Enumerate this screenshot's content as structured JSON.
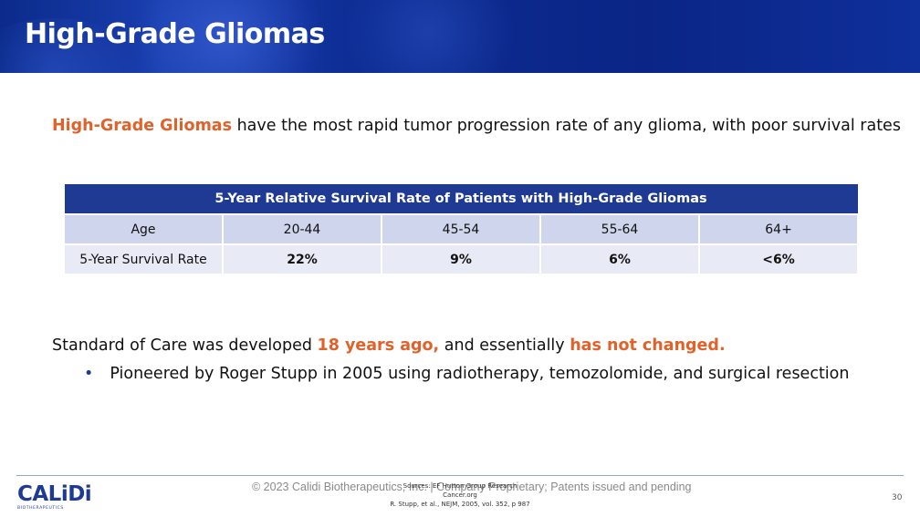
{
  "header": {
    "title": "High-Grade Gliomas"
  },
  "intro": {
    "highlight": "High-Grade Gliomas",
    "text": " have the most rapid tumor progression rate of any glioma, with poor survival rates"
  },
  "table": {
    "caption": "5-Year Relative Survival Rate of Patients with High-Grade Gliomas",
    "age_row": [
      "Age",
      "20-44",
      "45-54",
      "55-64",
      "64+"
    ],
    "rate_row": [
      "5-Year Survival Rate",
      "22%",
      "9%",
      "6%",
      "<6%"
    ]
  },
  "soc": {
    "prefix": "Standard of Care was developed ",
    "highlight1": "18 years ago,",
    "middle": " and essentially ",
    "highlight2": "has not changed."
  },
  "bullet": {
    "symbol": "•",
    "text": "Pioneered by Roger Stupp in 2005 using radiotherapy, temozolomide, and surgical resection"
  },
  "footer": {
    "logo_text": "CALiDi",
    "logo_sub": "BIOTHERAPEUTICS",
    "copyright": "© 2023 Calidi Biotherapeutics, Inc. | Company Proprietary; Patents issued and pending",
    "sources": [
      "Sources: EF Hutton Group Research",
      "Cancer.org",
      "R. Stupp, et al., NEJM, 2005, vol. 352, p 987"
    ],
    "page_number": "30"
  },
  "colors": {
    "brand_blue": "#1f3a93",
    "accent_orange": "#e0612a"
  }
}
